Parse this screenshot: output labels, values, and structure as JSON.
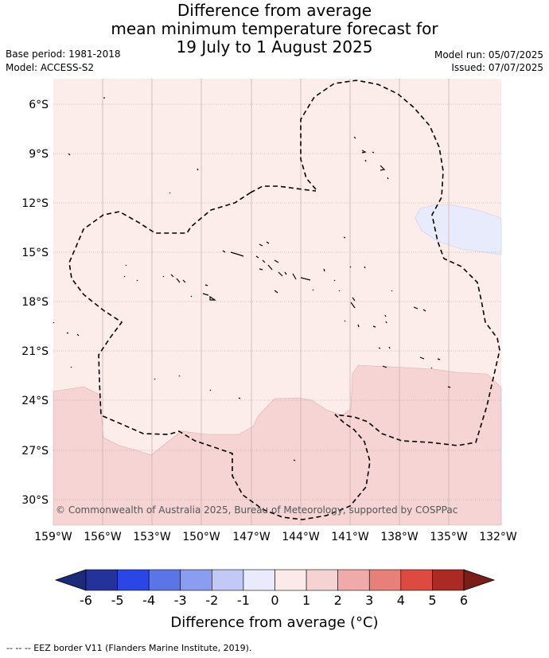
{
  "title": {
    "line1": "Difference from average",
    "line2": "mean minimum temperature forecast for",
    "line3": "19 July to 1 August 2025"
  },
  "meta": {
    "base_period": "Base period: 1981-2018",
    "model": "Model: ACCESS-S2",
    "model_run": "Model run: 05/07/2025",
    "issued": "Issued: 07/07/2025"
  },
  "copyright": "© Commonwealth of Australia 2025, Bureau of Meteorology, supported by COSPPac",
  "lat_labels": [
    "6°S",
    "9°S",
    "12°S",
    "15°S",
    "18°S",
    "21°S",
    "24°S",
    "27°S",
    "30°S"
  ],
  "lon_labels": [
    "159°W",
    "156°W",
    "153°W",
    "150°W",
    "147°W",
    "144°W",
    "141°W",
    "138°W",
    "135°W",
    "132°W"
  ],
  "colorbar": {
    "ticks": [
      "-6",
      "-5",
      "-4",
      "-3",
      "-2",
      "-1",
      "0",
      "1",
      "2",
      "3",
      "4",
      "5",
      "6"
    ],
    "colors": [
      "#24339c",
      "#2a47e6",
      "#5b74e6",
      "#8a9df0",
      "#c2c9f6",
      "#e9ebfc",
      "#fceaea",
      "#f6d3d3",
      "#f0aaaa",
      "#e8807a",
      "#dc4a40",
      "#ab2a23"
    ],
    "low_extend": "#1d2a7a",
    "high_extend": "#7a1e1a",
    "title": "Difference from average (°C)"
  },
  "colors": {
    "shade_0_1": "#fcecea",
    "shade_1_2": "#f5d4d3",
    "shade_neg1_0": "#e8ebfb"
  },
  "footer": "-- -- -- EEZ border V11 (Flanders Marine Institute, 2019)."
}
